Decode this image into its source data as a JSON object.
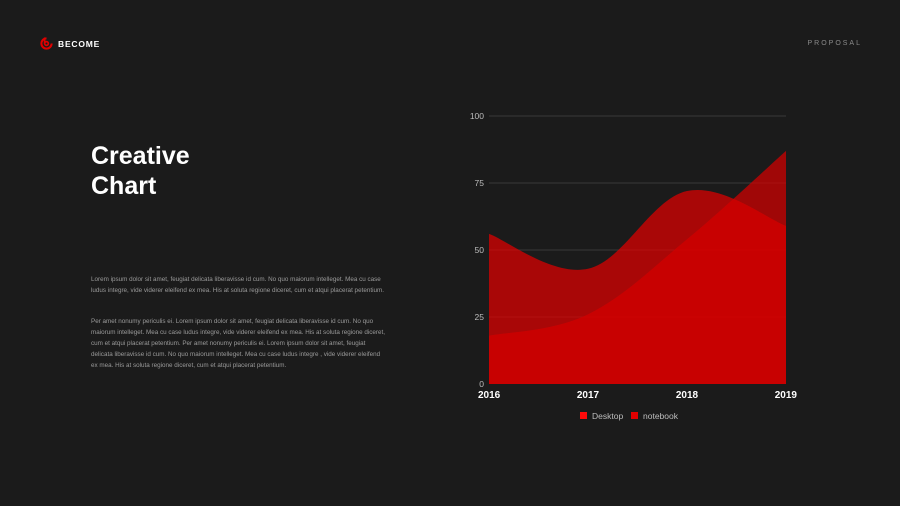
{
  "brand": {
    "name": "BECOME"
  },
  "header": {
    "label": "PROPOSAL"
  },
  "title": {
    "line1": "Creative",
    "line2": "Chart"
  },
  "paragraphs": [
    "Lorem ipsum dolor sit amet, feugiat delicata liberavisse id cum. No quo maiorum intelleget. Mea cu case ludus integre, vide viderer eleifend ex mea. His at soluta regione diceret, cum et atqui placerat petentium.",
    "Per amet nonumy periculis ei. Lorem ipsum dolor sit amet, feugiat delicata liberavisse id cum. No quo maiorum intelleget. Mea cu case ludus integre, vide viderer eleifend ex mea. His at soluta regione diceret, cum et atqui placerat petentium. Per amet nonumy periculis ei. Lorem ipsum dolor sit amet, feugiat delicata liberavisse id cum. No quo maiorum intelleget. Mea cu case ludus integre , vide viderer eleifend ex mea. His at soluta regione diceret, cum et atqui placerat petentium."
  ],
  "colors": {
    "accent": "#e00000",
    "background": "#1b1b1b"
  },
  "chart_data": {
    "type": "area",
    "categories": [
      "2016",
      "2017",
      "2018",
      "2019"
    ],
    "series": [
      {
        "name": "Desktop",
        "values": [
          56,
          43,
          72,
          59
        ],
        "color": "#e00000"
      },
      {
        "name": "notebook",
        "values": [
          18,
          26,
          54,
          87
        ],
        "color": "#d40000"
      }
    ],
    "yticks": [
      "0",
      "25",
      "50",
      "75",
      "100"
    ],
    "ylim": [
      0,
      100
    ],
    "grid": true,
    "legend": "bottom-center"
  }
}
